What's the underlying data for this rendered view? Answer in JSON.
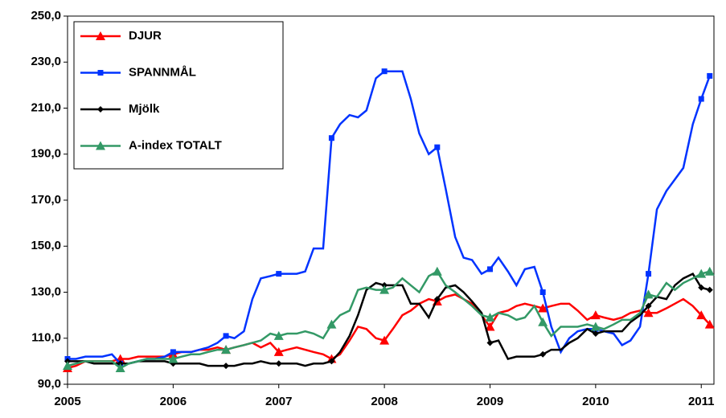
{
  "chart_data": {
    "type": "line",
    "x": [
      2005.0,
      2005.08,
      2005.17,
      2005.25,
      2005.33,
      2005.42,
      2005.5,
      2005.58,
      2005.67,
      2005.75,
      2005.83,
      2005.92,
      2006.0,
      2006.08,
      2006.17,
      2006.25,
      2006.33,
      2006.42,
      2006.5,
      2006.58,
      2006.67,
      2006.75,
      2006.83,
      2006.92,
      2007.0,
      2007.08,
      2007.17,
      2007.25,
      2007.33,
      2007.42,
      2007.5,
      2007.58,
      2007.67,
      2007.75,
      2007.83,
      2007.92,
      2008.0,
      2008.08,
      2008.17,
      2008.25,
      2008.33,
      2008.42,
      2008.5,
      2008.58,
      2008.67,
      2008.75,
      2008.83,
      2008.92,
      2009.0,
      2009.08,
      2009.17,
      2009.25,
      2009.33,
      2009.42,
      2009.5,
      2009.58,
      2009.67,
      2009.75,
      2009.83,
      2009.92,
      2010.0,
      2010.08,
      2010.17,
      2010.25,
      2010.33,
      2010.42,
      2010.5,
      2010.58,
      2010.67,
      2010.75,
      2010.83,
      2010.92,
      2011.0,
      2011.08
    ],
    "series": [
      {
        "name": "DJUR",
        "color": "#ff0000",
        "marker": "triangle",
        "values": [
          97,
          98,
          100,
          100,
          100,
          100,
          101,
          101,
          102,
          102,
          102,
          102,
          103,
          104,
          104,
          105,
          105,
          106,
          105,
          106,
          107,
          108,
          106,
          108,
          104,
          105,
          106,
          105,
          104,
          103,
          101,
          103,
          109,
          115,
          114,
          110,
          109,
          114,
          120,
          122,
          125,
          127,
          126,
          128,
          129,
          127,
          125,
          120,
          115,
          121,
          122,
          124,
          125,
          124,
          123,
          124,
          125,
          125,
          122,
          118,
          120,
          119,
          118,
          119,
          121,
          122,
          121,
          121,
          123,
          125,
          127,
          124,
          120,
          116
        ]
      },
      {
        "name": "SPANNMÅL",
        "color": "#0033ff",
        "marker": "square",
        "values": [
          101,
          101,
          102,
          102,
          102,
          103,
          99,
          99,
          100,
          101,
          101,
          102,
          104,
          104,
          104,
          105,
          106,
          108,
          111,
          110,
          113,
          127,
          136,
          137,
          138,
          138,
          138,
          139,
          149,
          149,
          197,
          203,
          207,
          206,
          209,
          223,
          226,
          226,
          226,
          214,
          199,
          190,
          193,
          175,
          154,
          145,
          144,
          138,
          140,
          145,
          139,
          133,
          140,
          141,
          130,
          115,
          104,
          110,
          113,
          114,
          114,
          113,
          112,
          107,
          109,
          115,
          138,
          166,
          174,
          179,
          184,
          203,
          214,
          224
        ]
      },
      {
        "name": "Mjölk",
        "color": "#000000",
        "marker": "diamond",
        "values": [
          100,
          100,
          100,
          99,
          99,
          99,
          99,
          99,
          100,
          100,
          100,
          100,
          99,
          99,
          99,
          99,
          98,
          98,
          98,
          98,
          99,
          99,
          100,
          99,
          99,
          99,
          99,
          98,
          99,
          99,
          100,
          104,
          111,
          120,
          131,
          134,
          133,
          133,
          133,
          125,
          125,
          119,
          127,
          132,
          133,
          130,
          126,
          121,
          108,
          109,
          101,
          102,
          102,
          102,
          103,
          105,
          105,
          108,
          110,
          114,
          112,
          113,
          113,
          113,
          117,
          120,
          124,
          128,
          127,
          133,
          136,
          138,
          132,
          131
        ]
      },
      {
        "name": "A-index TOTALT",
        "color": "#339966",
        "marker": "triangle",
        "values": [
          98,
          99,
          100,
          100,
          100,
          100,
          97,
          99,
          100,
          101,
          101,
          101,
          101,
          102,
          103,
          103,
          104,
          105,
          105,
          106,
          107,
          108,
          109,
          112,
          111,
          112,
          112,
          113,
          112,
          110,
          116,
          120,
          122,
          131,
          132,
          131,
          131,
          132,
          136,
          133,
          130,
          137,
          139,
          133,
          130,
          127,
          124,
          120,
          119,
          121,
          120,
          118,
          119,
          124,
          117,
          111,
          115,
          115,
          115,
          116,
          115,
          114,
          116,
          118,
          118,
          121,
          129,
          128,
          134,
          131,
          134,
          136,
          138,
          139
        ]
      }
    ],
    "xlim": [
      2005,
      2011.12
    ],
    "xticks": [
      2005,
      2006,
      2007,
      2008,
      2009,
      2010,
      2011
    ],
    "ylim": [
      90,
      250
    ],
    "yticks": [
      {
        "value": 90,
        "label": "90,0"
      },
      {
        "value": 110,
        "label": "110,0"
      },
      {
        "value": 130,
        "label": "130,0"
      },
      {
        "value": 150,
        "label": "150,0"
      },
      {
        "value": 170,
        "label": "170,0"
      },
      {
        "value": 190,
        "label": "190,0"
      },
      {
        "value": 210,
        "label": "210,0"
      },
      {
        "value": 230,
        "label": "230,0"
      },
      {
        "value": 250,
        "label": "250,0"
      }
    ],
    "legend": "upper left",
    "grid": false
  }
}
